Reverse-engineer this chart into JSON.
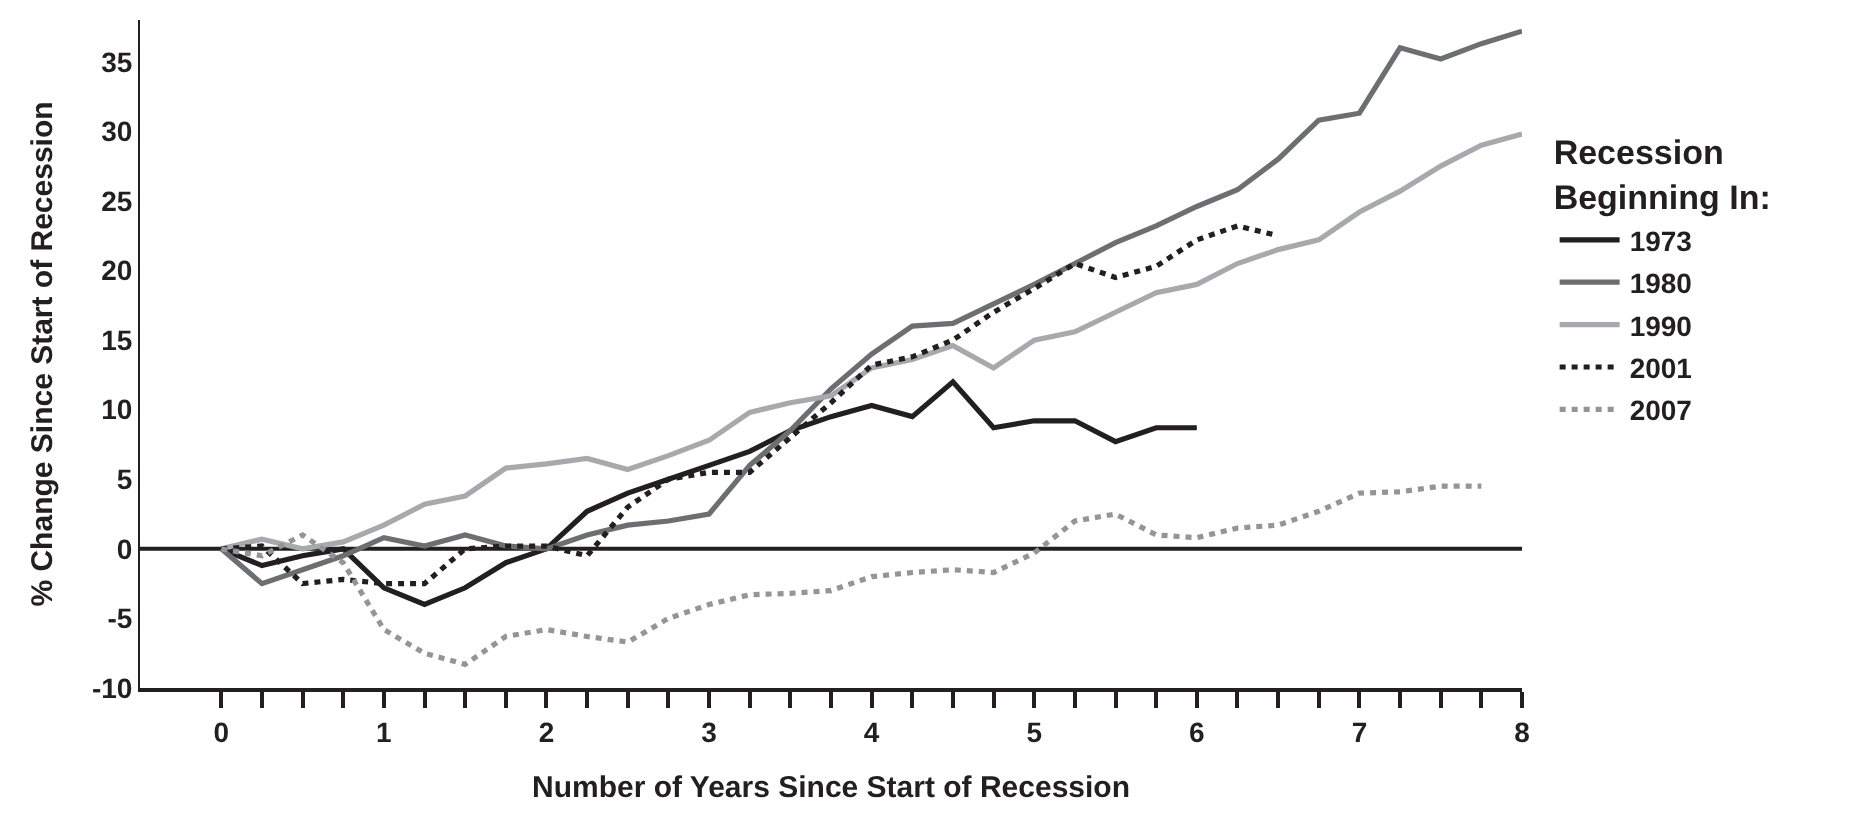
{
  "chart_data": {
    "type": "line",
    "xlabel": "Number of Years Since Start of Recession",
    "ylabel": "% Change Since Start of Recession",
    "legend_title": "Recession Beginning In:",
    "legend": "right",
    "grid": false,
    "marker": "none",
    "xlim": [
      -0.5,
      8
    ],
    "ylim": [
      -10,
      38
    ],
    "xticks": [
      0,
      {
        "value": 0.25,
        "label": null
      },
      {
        "value": 0.5,
        "label": null
      },
      {
        "value": 0.75,
        "label": null
      },
      1,
      {
        "value": 1.25,
        "label": null
      },
      {
        "value": 1.5,
        "label": null
      },
      {
        "value": 1.75,
        "label": null
      },
      2,
      {
        "value": 2.25,
        "label": null
      },
      {
        "value": 2.5,
        "label": null
      },
      {
        "value": 2.75,
        "label": null
      },
      3,
      {
        "value": 3.25,
        "label": null
      },
      {
        "value": 3.5,
        "label": null
      },
      {
        "value": 3.75,
        "label": null
      },
      4,
      {
        "value": 4.25,
        "label": null
      },
      {
        "value": 4.5,
        "label": null
      },
      {
        "value": 4.75,
        "label": null
      },
      5,
      {
        "value": 5.25,
        "label": null
      },
      {
        "value": 5.5,
        "label": null
      },
      {
        "value": 5.75,
        "label": null
      },
      6,
      {
        "value": 6.25,
        "label": null
      },
      {
        "value": 6.5,
        "label": null
      },
      {
        "value": 6.75,
        "label": null
      },
      7,
      {
        "value": 7.25,
        "label": null
      },
      {
        "value": 7.5,
        "label": null
      },
      {
        "value": 7.75,
        "label": null
      },
      8
    ],
    "yticks": [
      -10,
      -5,
      0,
      5,
      10,
      15,
      20,
      25,
      30,
      35
    ],
    "ref_lines": [
      {
        "axis": "y",
        "value": 0,
        "color": "#231f20",
        "line_style": "solid"
      }
    ],
    "x": [
      0,
      0.25,
      0.5,
      0.75,
      1,
      1.25,
      1.5,
      1.75,
      2,
      2.25,
      2.5,
      2.75,
      3,
      3.25,
      3.5,
      3.75,
      4,
      4.25,
      4.5,
      4.75,
      5,
      5.25,
      5.5,
      5.75,
      6,
      6.25,
      6.5,
      6.75,
      7,
      7.25,
      7.5,
      7.75,
      8
    ],
    "series": [
      {
        "name": "1973",
        "color": "#231f20",
        "line_style": "solid",
        "x": [
          0,
          0.25,
          0.5,
          0.75,
          1,
          1.25,
          1.5,
          1.75,
          2,
          2.25,
          2.5,
          2.75,
          3,
          3.25,
          3.5,
          3.75,
          4,
          4.25,
          4.5,
          4.75,
          5,
          5.25,
          5.5,
          5.75,
          6
        ],
        "values": [
          0,
          -1.2,
          -0.5,
          0,
          -2.8,
          -4,
          -2.8,
          -1,
          0,
          2.7,
          4,
          5,
          6,
          7,
          8.5,
          9.5,
          10.3,
          9.5,
          12,
          8.7,
          9.2,
          9.2,
          7.7,
          8.7,
          8.7
        ]
      },
      {
        "name": "1980",
        "color": "#6d6e71",
        "line_style": "solid",
        "values": [
          0,
          -2.5,
          -1.5,
          -0.5,
          0.8,
          0.2,
          1,
          0.2,
          0,
          1,
          1.7,
          2,
          2.5,
          6,
          8.5,
          11.5,
          14,
          16,
          16.2,
          17.6,
          19,
          20.5,
          22,
          23.2,
          24.6,
          25.8,
          28,
          30.8,
          31.3,
          36,
          35.2,
          36.3,
          37.2
        ]
      },
      {
        "name": "1990",
        "color": "#a7a9ac",
        "line_style": "solid",
        "values": [
          0,
          0.7,
          0,
          0.5,
          1.7,
          3.2,
          3.8,
          5.8,
          6.1,
          6.5,
          5.7,
          6.7,
          7.8,
          9.8,
          10.5,
          11,
          13,
          13.6,
          14.6,
          13,
          15,
          15.6,
          17,
          18.4,
          19,
          20.5,
          21.5,
          22.2,
          24.2,
          25.7,
          27.5,
          29,
          29.8
        ]
      },
      {
        "name": "2001",
        "color": "#231f20",
        "line_style": "dotted",
        "x": [
          0,
          0.25,
          0.5,
          0.75,
          1,
          1.25,
          1.5,
          1.75,
          2,
          2.25,
          2.5,
          2.75,
          3,
          3.25,
          3.5,
          3.75,
          4,
          4.25,
          4.5,
          4.75,
          5,
          5.25,
          5.5,
          5.75,
          6,
          6.25,
          6.5
        ],
        "values": [
          0,
          0.2,
          -2.5,
          -2.2,
          -2.5,
          -2.5,
          0,
          0.2,
          0.2,
          -0.5,
          3,
          5,
          5.5,
          5.5,
          8,
          10.5,
          13.2,
          13.8,
          15,
          17,
          18.7,
          20.5,
          19.5,
          20.3,
          22.2,
          23.2,
          22.5
        ]
      },
      {
        "name": "2007",
        "color": "#939598",
        "line_style": "dotted",
        "x": [
          0,
          0.25,
          0.5,
          0.75,
          1,
          1.25,
          1.5,
          1.75,
          2,
          2.25,
          2.5,
          2.75,
          3,
          3.25,
          3.5,
          3.75,
          4,
          4.25,
          4.5,
          4.75,
          5,
          5.25,
          5.5,
          5.75,
          6,
          6.25,
          6.5,
          6.75,
          7,
          7.25,
          7.5,
          7.75
        ],
        "values": [
          0,
          -0.5,
          1,
          -1,
          -5.8,
          -7.5,
          -8.3,
          -6.3,
          -5.8,
          -6.3,
          -6.7,
          -5,
          -4,
          -3.3,
          -3.2,
          -3,
          -2,
          -1.7,
          -1.5,
          -1.7,
          -0.3,
          2,
          2.5,
          1,
          0.8,
          1.5,
          1.7,
          2.7,
          4,
          4.1,
          4.5,
          4.5
        ]
      }
    ]
  }
}
